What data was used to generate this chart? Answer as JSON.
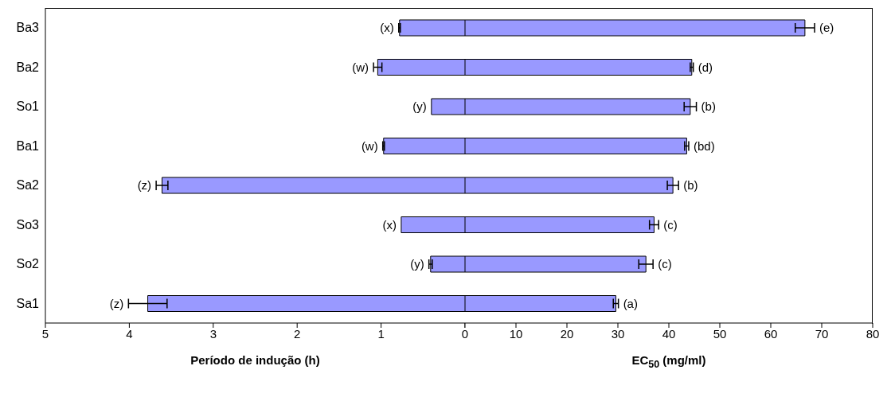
{
  "chart_data": [
    {
      "type": "bar",
      "orientation": "horizontal",
      "xlabel": "Período de indução (h)",
      "categories": [
        "Ba3",
        "Ba2",
        "So1",
        "Ba1",
        "Sa2",
        "So3",
        "So2",
        "Sa1"
      ],
      "values": [
        0.78,
        1.04,
        0.4,
        0.97,
        3.61,
        0.76,
        0.41,
        3.78
      ],
      "errors": [
        0.01,
        0.05,
        null,
        0.01,
        0.07,
        null,
        0.02,
        0.23
      ],
      "color": "#9999ff",
      "xlim": [
        5,
        0
      ],
      "xticks": [
        5,
        4,
        3,
        2,
        1,
        {
          "value": 0,
          "label": null
        }
      ],
      "grid": false,
      "legend": false,
      "annotations": [
        {
          "text": "(x)",
          "x": 0.78,
          "y": "Ba3"
        },
        {
          "text": "(w)",
          "x": 1.04,
          "y": "Ba2"
        },
        {
          "text": "(y)",
          "x": 0.4,
          "y": "So1"
        },
        {
          "text": "(w)",
          "x": 0.97,
          "y": "Ba1"
        },
        {
          "text": "(z)",
          "x": 3.61,
          "y": "Sa2"
        },
        {
          "text": "(x)",
          "x": 0.76,
          "y": "So3"
        },
        {
          "text": "(y)",
          "x": 0.41,
          "y": "So2"
        },
        {
          "text": "(z)",
          "x": 3.78,
          "y": "Sa1"
        }
      ]
    },
    {
      "type": "bar",
      "orientation": "horizontal",
      "xlabel": "EC$_{50}$ (mg/ml)",
      "categories": [
        "Ba3",
        "Ba2",
        "So1",
        "Ba1",
        "Sa2",
        "So3",
        "So2",
        "Sa1"
      ],
      "values": [
        66.7,
        44.5,
        44.2,
        43.5,
        40.8,
        37.1,
        35.5,
        29.6
      ],
      "errors": [
        1.9,
        0.3,
        1.2,
        0.4,
        1.1,
        0.9,
        1.4,
        0.5
      ],
      "color": "#9999ff",
      "xlim": [
        0,
        80
      ],
      "xticks": [
        0,
        10,
        20,
        30,
        40,
        50,
        60,
        70,
        80
      ],
      "grid": false,
      "legend": false,
      "tick_labels": "x",
      "annotations": [
        {
          "text": "(e)",
          "x": 66.7,
          "y": "Ba3"
        },
        {
          "text": "(d)",
          "x": 44.5,
          "y": "Ba2"
        },
        {
          "text": "(b)",
          "x": 44.2,
          "y": "So1"
        },
        {
          "text": "(bd)",
          "x": 43.5,
          "y": "Ba1"
        },
        {
          "text": "(b)",
          "x": 40.8,
          "y": "Sa2"
        },
        {
          "text": "(c)",
          "x": 37.1,
          "y": "So3"
        },
        {
          "text": "(c)",
          "x": 35.5,
          "y": "So2"
        },
        {
          "text": "(a)",
          "x": 29.6,
          "y": "Sa1"
        }
      ]
    }
  ]
}
